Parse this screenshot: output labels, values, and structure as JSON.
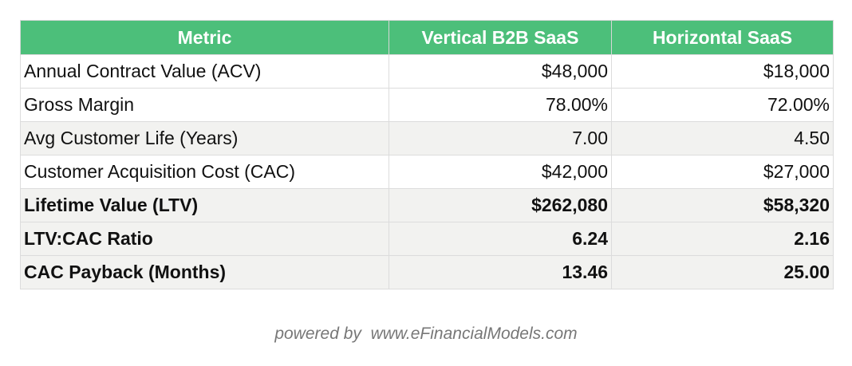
{
  "table": {
    "headers": [
      "Metric",
      "Vertical B2B SaaS",
      "Horizontal SaaS"
    ],
    "rows": [
      {
        "metric": "Annual Contract Value (ACV)",
        "vertical": "$48,000",
        "horizontal": "$18,000"
      },
      {
        "metric": "Gross Margin",
        "vertical": "78.00%",
        "horizontal": "72.00%"
      },
      {
        "metric": "Avg Customer Life (Years)",
        "vertical": "7.00",
        "horizontal": "4.50"
      },
      {
        "metric": "Customer Acquisition Cost (CAC)",
        "vertical": "$42,000",
        "horizontal": "$27,000"
      },
      {
        "metric": "Lifetime Value (LTV)",
        "vertical": "$262,080",
        "horizontal": "$58,320"
      },
      {
        "metric": "LTV:CAC Ratio",
        "vertical": "6.24",
        "horizontal": "2.16"
      },
      {
        "metric": "CAC Payback (Months)",
        "vertical": "13.46",
        "horizontal": "25.00"
      }
    ]
  },
  "colors": {
    "header_bg": "#4cbf7a",
    "header_text": "#ffffff",
    "row_shade": "#f2f2f0"
  },
  "footer": {
    "prefix": "powered by",
    "site": "www.eFinancialModels.com"
  }
}
